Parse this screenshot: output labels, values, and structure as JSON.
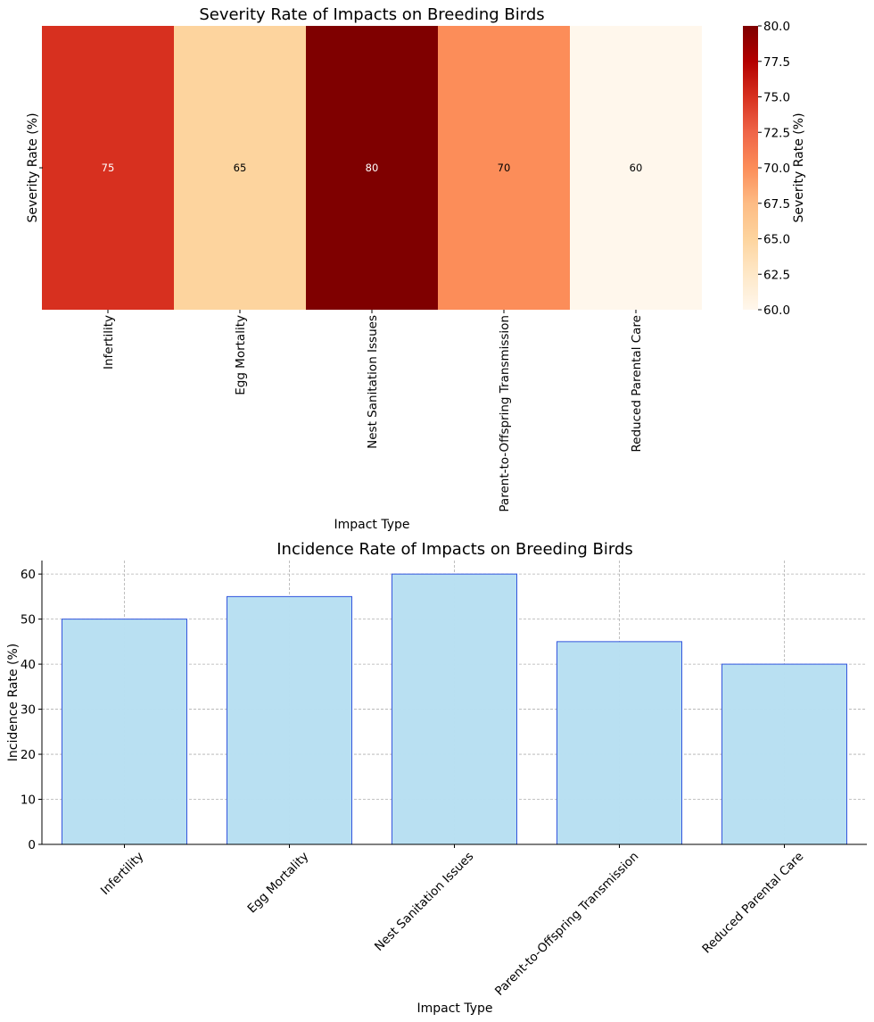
{
  "chart_data": [
    {
      "type": "heatmap",
      "title": "Severity Rate of Impacts on Breeding Birds",
      "xlabel": "Impact Type",
      "ylabel": "Severity Rate (%)",
      "categories": [
        "Infertility",
        "Egg Mortality",
        "Nest Sanitation Issues",
        "Parent-to-Offspring Transmission",
        "Reduced Parental Care"
      ],
      "values": [
        75,
        65,
        80,
        70,
        60
      ],
      "colorbar": {
        "label": "Severity Rate (%)",
        "range": [
          60,
          80
        ],
        "ticks": [
          "60.0",
          "62.5",
          "65.0",
          "67.5",
          "70.0",
          "72.5",
          "75.0",
          "77.5",
          "80.0"
        ],
        "colormap": "OrRd"
      }
    },
    {
      "type": "bar",
      "title": "Incidence Rate of Impacts on Breeding Birds",
      "xlabel": "Impact Type",
      "ylabel": "Incidence Rate (%)",
      "categories": [
        "Infertility",
        "Egg Mortality",
        "Nest Sanitation Issues",
        "Parent-to-Offspring Transmission",
        "Reduced Parental Care"
      ],
      "values": [
        50,
        55,
        60,
        45,
        40
      ],
      "ylim": [
        0,
        63
      ],
      "yticks": [
        0,
        10,
        20,
        30,
        40,
        50,
        60
      ],
      "grid": true,
      "bar_color": "#b8dff2",
      "bar_edge_color": "#3355dd"
    }
  ]
}
